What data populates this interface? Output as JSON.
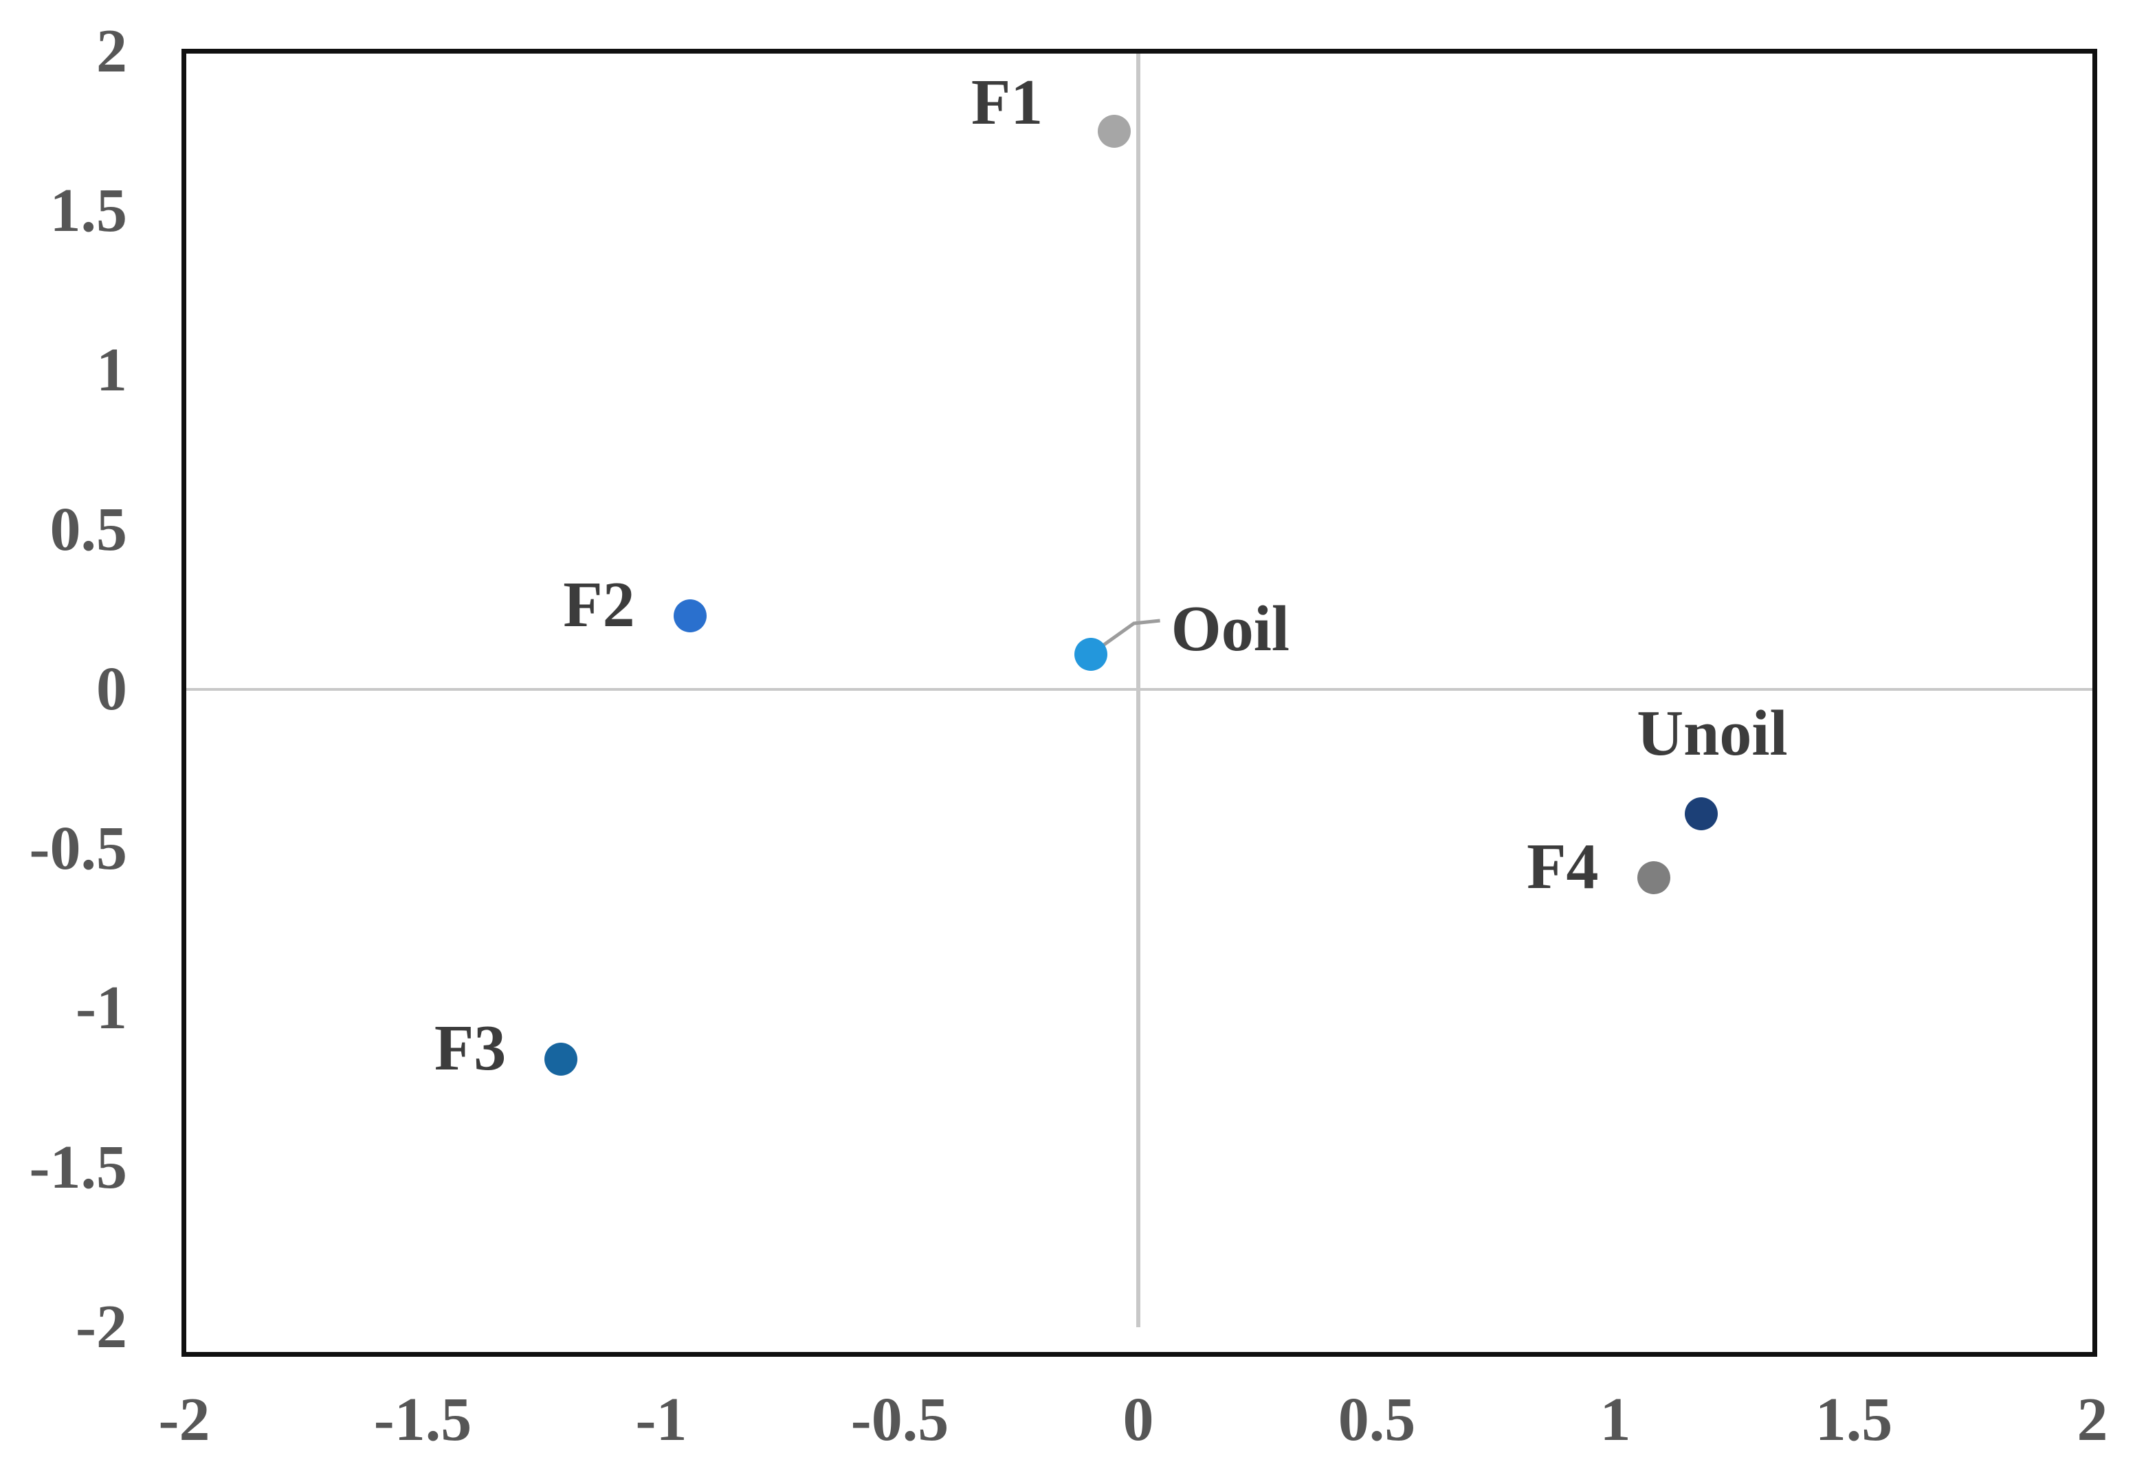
{
  "chart_data": {
    "type": "scatter",
    "title": "",
    "xlabel": "",
    "ylabel": "",
    "xlim": [
      -2,
      2
    ],
    "ylim": [
      -2,
      2
    ],
    "grid": "zero-lines-only",
    "legend": "none",
    "x_tick_values": [
      -2,
      -1.5,
      -1,
      -0.5,
      0,
      0.5,
      1,
      1.5,
      2
    ],
    "x_tick_labels": [
      "-2",
      "-1.5",
      "-1",
      "-0.5",
      "0",
      "0.5",
      "1",
      "1.5",
      "2"
    ],
    "y_tick_values": [
      2,
      1.5,
      1,
      0.5,
      0,
      -0.5,
      -1,
      -1.5,
      -2
    ],
    "y_tick_labels": [
      "2",
      "1.5",
      "1",
      "0.5",
      "0",
      "-0.5",
      "-1",
      "-1.5",
      "-2"
    ],
    "points": [
      {
        "label": "F1",
        "x": -0.05,
        "y": 1.75,
        "color": "#a6a6a6",
        "label_placement": "left-up"
      },
      {
        "label": "F2",
        "x": -0.94,
        "y": 0.23,
        "color": "#2a70ce",
        "label_placement": "left"
      },
      {
        "label": "Ooil",
        "x": -0.1,
        "y": 0.11,
        "color": "#2397dc",
        "label_placement": "callout-right"
      },
      {
        "label": "Unoil",
        "x": 1.18,
        "y": -0.39,
        "color": "#1c4077",
        "label_placement": "above"
      },
      {
        "label": "F4",
        "x": 1.08,
        "y": -0.59,
        "color": "#7f7f7f",
        "label_placement": "left"
      },
      {
        "label": "F3",
        "x": -1.21,
        "y": -1.16,
        "color": "#17659f",
        "label_placement": "left"
      }
    ],
    "colors": {
      "plot_border": "#101010",
      "zero_line": "#c8c8c8",
      "tick_text": "#565656",
      "point_label_text": "#3c3c3c",
      "leader_line": "#9c9c9c",
      "background": "#ffffff"
    }
  }
}
